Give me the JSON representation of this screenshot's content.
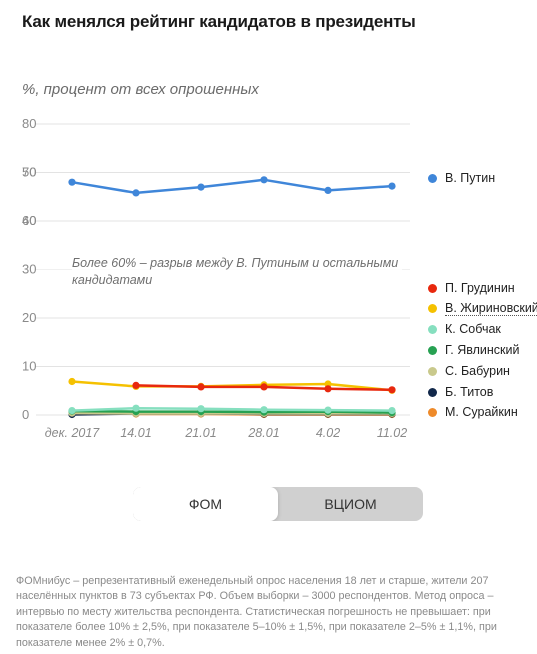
{
  "header": {
    "title": "Как менялся рейтинг кандидатов в президенты",
    "subtitle": "%, процент от всех опрошенных"
  },
  "chart_data": {
    "type": "line",
    "x": [
      "дек. 2017",
      "14.01",
      "21.01",
      "28.01",
      "4.02",
      "11.02"
    ],
    "y_ticks_upper": [
      60,
      70,
      80
    ],
    "y_ticks_lower": [
      0,
      10,
      20,
      30,
      40,
      50
    ],
    "annotation": "Более 60% – разрыв между В. Путиным и остальными кандидатами",
    "series": [
      {
        "name": "В. Путин",
        "color": "#3f86d9",
        "values": [
          68,
          65.8,
          67,
          68.5,
          66.3,
          67.2
        ]
      },
      {
        "name": "П. Грудинин",
        "color": "#e8280e",
        "values": [
          null,
          6.1,
          5.8,
          5.8,
          5.4,
          5.2
        ]
      },
      {
        "name": "В. Жириновский",
        "color": "#f5c100",
        "values": [
          6.9,
          5.9,
          5.9,
          6.2,
          6.4,
          5.1
        ]
      },
      {
        "name": "К. Собчак",
        "color": "#86dfbf",
        "values": [
          0.9,
          1.4,
          1.3,
          1.1,
          1.0,
          0.9
        ]
      },
      {
        "name": "Г. Явлинский",
        "color": "#27a152",
        "values": [
          0.8,
          0.7,
          0.7,
          0.6,
          0.7,
          0.5
        ]
      },
      {
        "name": "С. Бабурин",
        "color": "#c9c98c",
        "values": [
          0.4,
          0.3,
          0.3,
          0.3,
          0.3,
          0.3
        ]
      },
      {
        "name": "Б. Титов",
        "color": "#12284a",
        "values": [
          0.1,
          0.3,
          0.3,
          0.2,
          0.2,
          0.2
        ]
      },
      {
        "name": "М. Сурайкин",
        "color": "#ee8a2a",
        "values": [
          null,
          0.2,
          0.2,
          0.1,
          0.1,
          0.1
        ]
      }
    ],
    "grid": true,
    "legend": "right"
  },
  "toggle": {
    "options": [
      "ФОМ",
      "ВЦИОМ"
    ],
    "selected": "ФОМ"
  },
  "footnote": "ФОМнибус – репрезентативный еженедельный опрос населения 18 лет и старше, жители 207 населённых пунктов в 73 субъектах РФ. Объем выборки – 3000 респондентов. Метод опроса – интервью по месту жительства респондента. Статистическая погрешность не превышает: при показателе более 10% ± 2,5%, при показателе 5–10% ± 1,5%, при показателе 2–5% ± 1,1%, при показателе менее 2% ± 0,7%."
}
